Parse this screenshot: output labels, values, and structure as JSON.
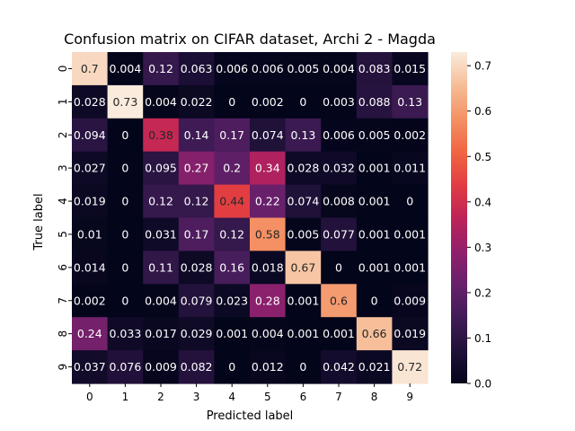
{
  "chart_data": {
    "type": "heatmap",
    "title": "Confusion matrix on CIFAR dataset, Archi 2 - Magda",
    "xlabel": "Predicted label",
    "ylabel": "True label",
    "x_categories": [
      "0",
      "1",
      "2",
      "3",
      "4",
      "5",
      "6",
      "7",
      "8",
      "9"
    ],
    "y_categories": [
      "0",
      "1",
      "2",
      "3",
      "4",
      "5",
      "6",
      "7",
      "8",
      "9"
    ],
    "values": [
      [
        "0.7",
        "0.004",
        "0.12",
        "0.063",
        "0.006",
        "0.006",
        "0.005",
        "0.004",
        "0.083",
        "0.015"
      ],
      [
        "0.028",
        "0.73",
        "0.004",
        "0.022",
        "0",
        "0.002",
        "0",
        "0.003",
        "0.088",
        "0.13"
      ],
      [
        "0.094",
        "0",
        "0.38",
        "0.14",
        "0.17",
        "0.074",
        "0.13",
        "0.006",
        "0.005",
        "0.002"
      ],
      [
        "0.027",
        "0",
        "0.095",
        "0.27",
        "0.2",
        "0.34",
        "0.028",
        "0.032",
        "0.001",
        "0.011"
      ],
      [
        "0.019",
        "0",
        "0.12",
        "0.12",
        "0.44",
        "0.22",
        "0.074",
        "0.008",
        "0.001",
        "0"
      ],
      [
        "0.01",
        "0",
        "0.031",
        "0.17",
        "0.12",
        "0.58",
        "0.005",
        "0.077",
        "0.001",
        "0.001"
      ],
      [
        "0.014",
        "0",
        "0.11",
        "0.028",
        "0.16",
        "0.018",
        "0.67",
        "0",
        "0.001",
        "0.001"
      ],
      [
        "0.002",
        "0",
        "0.004",
        "0.079",
        "0.023",
        "0.28",
        "0.001",
        "0.6",
        "0",
        "0.009"
      ],
      [
        "0.24",
        "0.033",
        "0.017",
        "0.029",
        "0.001",
        "0.004",
        "0.001",
        "0.001",
        "0.66",
        "0.019"
      ],
      [
        "0.037",
        "0.076",
        "0.009",
        "0.082",
        "0",
        "0.012",
        "0",
        "0.042",
        "0.021",
        "0.72"
      ]
    ],
    "colorbar": {
      "range": [
        0.0,
        0.73
      ],
      "ticks": [
        "0.0",
        "0.1",
        "0.2",
        "0.3",
        "0.4",
        "0.5",
        "0.6",
        "0.7"
      ],
      "colormap": "rocket"
    }
  }
}
